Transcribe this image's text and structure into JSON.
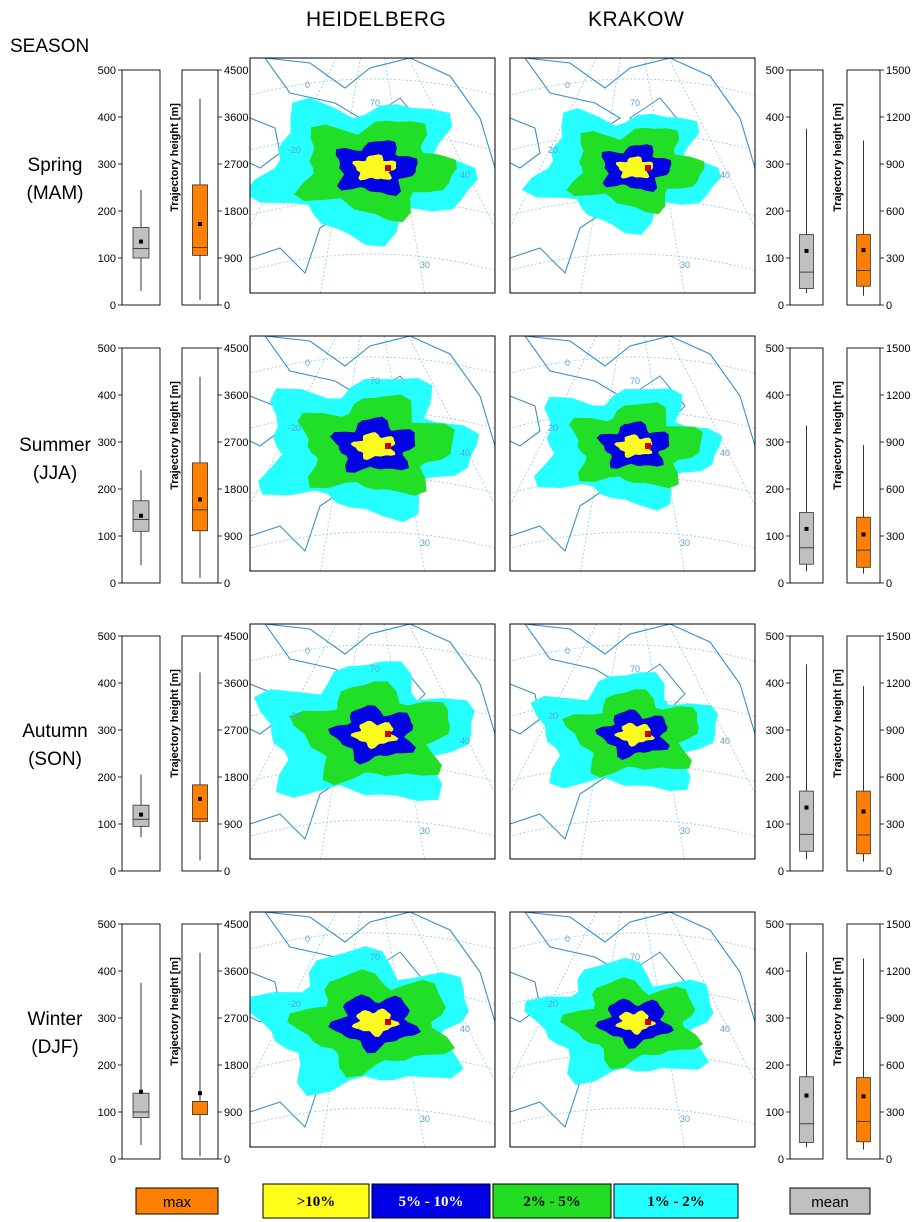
{
  "header": {
    "season_label": "SEASON",
    "cities": [
      "HEIDELBERG",
      "KRAKOW"
    ]
  },
  "seasons": [
    {
      "name": "Spring",
      "code": "(MAM)"
    },
    {
      "name": "Summer",
      "code": "(JJA)"
    },
    {
      "name": "Autumn",
      "code": "(SON)"
    },
    {
      "name": "Winter",
      "code": "(DJF)"
    }
  ],
  "legend": {
    "max_label": "max",
    "mean_label": "mean",
    "bins": [
      {
        "label": ">10%",
        "color": "#ffff1a"
      },
      {
        "label": "5% - 10%",
        "color": "#0000e6"
      },
      {
        "label": "2% - 5%",
        "color": "#22dd22"
      },
      {
        "label": "1% - 2%",
        "color": "#22ffff"
      }
    ]
  },
  "colors": {
    "gray_box": "#c0c0c0",
    "orange_box": "#ff7f00",
    "coast": "#3a8fd0",
    "grid": "#86c2e6",
    "station": "#cc0000"
  },
  "map_grid_labels": {
    "lat_left": [
      "70",
      "40",
      "30"
    ],
    "lon_left": [
      "0",
      "-20"
    ],
    "lat_right": [
      "70",
      "40",
      "30"
    ],
    "lon_right": [
      "0",
      "20"
    ]
  },
  "chart_data": [
    {
      "type": "boxplot",
      "panel": "gray-left",
      "ylim": [
        0,
        500
      ],
      "yticks": [
        "0",
        "100",
        "200",
        "300",
        "400",
        "500"
      ],
      "stats": [
        {
          "season": "Spring",
          "whisker_low": 30,
          "q1": 100,
          "median": 120,
          "q3": 165,
          "whisker_high": 245,
          "mean": 135
        },
        {
          "season": "Summer",
          "whisker_low": 38,
          "q1": 110,
          "median": 135,
          "q3": 175,
          "whisker_high": 240,
          "mean": 143
        },
        {
          "season": "Autumn",
          "whisker_low": 72,
          "q1": 95,
          "median": 110,
          "q3": 140,
          "whisker_high": 205,
          "mean": 120
        },
        {
          "season": "Winter",
          "whisker_low": 30,
          "q1": 88,
          "median": 100,
          "q3": 140,
          "whisker_high": 375,
          "mean": 143
        }
      ]
    },
    {
      "type": "boxplot",
      "panel": "orange-left",
      "ylabel": "Trajectory height [m]",
      "ylim": [
        0,
        4500
      ],
      "yticks": [
        "0",
        "900",
        "1800",
        "2700",
        "3600",
        "4500"
      ],
      "stats": [
        {
          "season": "Spring",
          "whisker_low": 100,
          "q1": 950,
          "median": 1100,
          "q3": 2300,
          "whisker_high": 3950,
          "mean": 1550
        },
        {
          "season": "Summer",
          "whisker_low": 100,
          "q1": 1000,
          "median": 1400,
          "q3": 2300,
          "whisker_high": 3950,
          "mean": 1600
        },
        {
          "season": "Autumn",
          "whisker_low": 200,
          "q1": 950,
          "median": 1000,
          "q3": 1650,
          "whisker_high": 3800,
          "mean": 1380
        },
        {
          "season": "Winter",
          "whisker_low": 50,
          "q1": 850,
          "median": 1100,
          "q3": 1100,
          "whisker_high": 3950,
          "mean": 1260
        }
      ]
    },
    {
      "type": "boxplot",
      "panel": "gray-right",
      "ylim": [
        0,
        500
      ],
      "yticks": [
        "0",
        "100",
        "200",
        "300",
        "400",
        "500"
      ],
      "stats": [
        {
          "season": "Spring",
          "whisker_low": 25,
          "q1": 35,
          "median": 70,
          "q3": 150,
          "whisker_high": 375,
          "mean": 115
        },
        {
          "season": "Summer",
          "whisker_low": 25,
          "q1": 40,
          "median": 75,
          "q3": 150,
          "whisker_high": 335,
          "mean": 115
        },
        {
          "season": "Autumn",
          "whisker_low": 25,
          "q1": 42,
          "median": 78,
          "q3": 170,
          "whisker_high": 440,
          "mean": 135
        },
        {
          "season": "Winter",
          "whisker_low": 25,
          "q1": 35,
          "median": 75,
          "q3": 175,
          "whisker_high": 440,
          "mean": 135
        }
      ]
    },
    {
      "type": "boxplot",
      "panel": "orange-right",
      "ylabel": "Trajectory height [m]",
      "ylim": [
        0,
        1500
      ],
      "yticks": [
        "0",
        "300",
        "600",
        "900",
        "1200",
        "1500"
      ],
      "stats": [
        {
          "season": "Spring",
          "whisker_low": 60,
          "q1": 120,
          "median": 220,
          "q3": 450,
          "whisker_high": 1050,
          "mean": 350
        },
        {
          "season": "Summer",
          "whisker_low": 60,
          "q1": 100,
          "median": 210,
          "q3": 420,
          "whisker_high": 880,
          "mean": 310
        },
        {
          "season": "Autumn",
          "whisker_low": 60,
          "q1": 110,
          "median": 230,
          "q3": 510,
          "whisker_high": 1180,
          "mean": 380
        },
        {
          "season": "Winter",
          "whisker_low": 60,
          "q1": 110,
          "median": 240,
          "q3": 520,
          "whisker_high": 1280,
          "mean": 400
        }
      ]
    }
  ]
}
